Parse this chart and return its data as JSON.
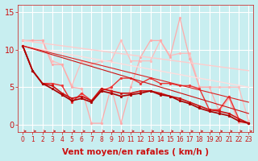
{
  "bg_color": "#c8eef0",
  "grid_color": "#ffffff",
  "xlabel": "Vent moyen/en rafales ( km/h )",
  "xlim": [
    -0.5,
    23.5
  ],
  "ylim": [
    -1.0,
    16.0
  ],
  "yticks": [
    0,
    5,
    10,
    15
  ],
  "xticks": [
    0,
    1,
    2,
    3,
    4,
    5,
    6,
    7,
    8,
    9,
    10,
    11,
    12,
    13,
    14,
    15,
    16,
    17,
    18,
    19,
    20,
    21,
    22,
    23
  ],
  "lines": [
    {
      "x": [
        0,
        1,
        2,
        3,
        4,
        5,
        6,
        7,
        8,
        9,
        10,
        11,
        12,
        13,
        14,
        15,
        16,
        17,
        18,
        19,
        20,
        21,
        22,
        23
      ],
      "y": [
        11.2,
        11.2,
        11.2,
        8.5,
        8.0,
        5.2,
        8.5,
        8.0,
        8.5,
        8.5,
        11.2,
        8.5,
        8.5,
        8.5,
        11.2,
        9.2,
        9.5,
        9.5,
        5.0,
        5.0,
        5.0,
        5.0,
        5.0,
        0.5
      ],
      "color": "#ffbbbb",
      "lw": 0.9,
      "marker": "o",
      "ms": 2.0,
      "ls": "-"
    },
    {
      "x": [
        0,
        1,
        2,
        3,
        4,
        5,
        6,
        7,
        8,
        9,
        10,
        11,
        12,
        13,
        14,
        15,
        16,
        17,
        18,
        19,
        20,
        21,
        22,
        23
      ],
      "y": [
        11.2,
        11.2,
        11.2,
        8.0,
        8.0,
        5.0,
        4.8,
        0.2,
        0.2,
        5.0,
        0.2,
        5.0,
        9.0,
        11.2,
        11.2,
        9.0,
        14.2,
        8.8,
        5.0,
        5.0,
        1.8,
        3.5,
        0.3,
        0.2
      ],
      "color": "#ffaaaa",
      "lw": 0.9,
      "marker": "o",
      "ms": 2.0,
      "ls": "-"
    },
    {
      "x": [
        0,
        23
      ],
      "y": [
        11.2,
        7.2
      ],
      "color": "#ffcccc",
      "lw": 1.0,
      "marker": null,
      "ms": 0,
      "ls": "-"
    },
    {
      "x": [
        0,
        23
      ],
      "y": [
        10.5,
        5.0
      ],
      "color": "#ffdddd",
      "lw": 1.0,
      "marker": null,
      "ms": 0,
      "ls": "-"
    },
    {
      "x": [
        0,
        1,
        2,
        3,
        4,
        5,
        6,
        7,
        8,
        9,
        10,
        11,
        12,
        13,
        14,
        15,
        16,
        17,
        18,
        19,
        20,
        21,
        22,
        23
      ],
      "y": [
        10.5,
        7.2,
        5.5,
        5.5,
        5.2,
        3.0,
        4.2,
        3.2,
        4.5,
        5.0,
        6.2,
        6.2,
        5.5,
        6.2,
        5.5,
        5.5,
        5.2,
        5.2,
        4.8,
        2.0,
        2.0,
        3.8,
        0.8,
        0.2
      ],
      "color": "#ee3333",
      "lw": 1.0,
      "marker": "o",
      "ms": 2.0,
      "ls": "-"
    },
    {
      "x": [
        0,
        1,
        2,
        3,
        4,
        5,
        6,
        7,
        8,
        9,
        10,
        11,
        12,
        13,
        14,
        15,
        16,
        17,
        18,
        19,
        20,
        21,
        22,
        23
      ],
      "y": [
        10.5,
        7.2,
        5.5,
        5.2,
        4.2,
        3.5,
        3.8,
        3.2,
        4.8,
        4.5,
        4.2,
        4.2,
        4.5,
        4.5,
        4.2,
        3.8,
        3.5,
        3.0,
        2.5,
        2.0,
        1.8,
        1.5,
        0.8,
        0.2
      ],
      "color": "#cc1111",
      "lw": 1.2,
      "marker": "o",
      "ms": 2.0,
      "ls": "-"
    },
    {
      "x": [
        0,
        1,
        2,
        3,
        4,
        5,
        6,
        7,
        8,
        9,
        10,
        11,
        12,
        13,
        14,
        15,
        16,
        17,
        18,
        19,
        20,
        21,
        22,
        23
      ],
      "y": [
        10.5,
        7.2,
        5.5,
        4.8,
        4.0,
        3.2,
        3.5,
        3.0,
        4.5,
        4.2,
        3.8,
        4.0,
        4.2,
        4.5,
        4.0,
        3.8,
        3.2,
        2.8,
        2.2,
        1.8,
        1.5,
        1.2,
        0.5,
        0.2
      ],
      "color": "#aa0000",
      "lw": 1.2,
      "marker": "o",
      "ms": 2.0,
      "ls": "-"
    },
    {
      "x": [
        0,
        23
      ],
      "y": [
        10.5,
        3.0
      ],
      "color": "#dd2222",
      "lw": 0.8,
      "marker": null,
      "ms": 0,
      "ls": "-"
    },
    {
      "x": [
        0,
        23
      ],
      "y": [
        10.5,
        1.5
      ],
      "color": "#cc1111",
      "lw": 0.8,
      "marker": null,
      "ms": 0,
      "ls": "-"
    }
  ],
  "arrow_color": "#cc2222",
  "xlabel_color": "#cc1111",
  "xlabel_fontsize": 7.5,
  "tick_color": "#cc1111",
  "tick_fontsize": 6.0,
  "ytick_fontsize": 7.0,
  "xtick_fontsize": 5.5
}
